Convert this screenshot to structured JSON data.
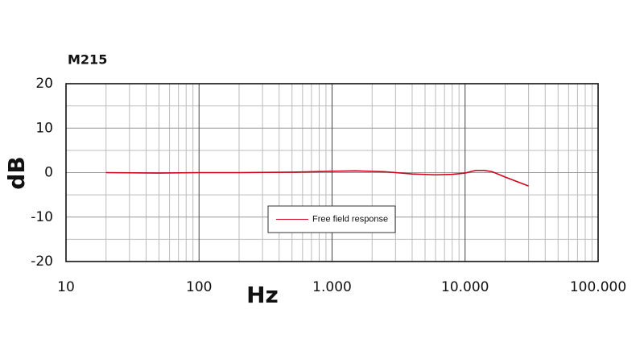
{
  "chart_data": {
    "type": "line",
    "title": "M215",
    "x_label": "Hz",
    "y_label": "dB",
    "x": [
      20,
      50,
      100,
      200,
      500,
      1000,
      1500,
      2500,
      4000,
      6000,
      8000,
      10000,
      12000,
      14000,
      16000,
      20000,
      30000
    ],
    "series": [
      {
        "name": "Free field response",
        "color": "#d0021b",
        "values": [
          0,
          -0.1,
          0,
          0,
          0.1,
          0.3,
          0.4,
          0.2,
          -0.3,
          -0.5,
          -0.4,
          -0.1,
          0.5,
          0.5,
          0.2,
          -1.0,
          -3.0
        ]
      }
    ],
    "xlim": [
      10,
      100000
    ],
    "xlog": true,
    "xticks": [
      10,
      100,
      {
        "value": 1000,
        "label": "1.000"
      },
      {
        "value": 10000,
        "label": "10.000"
      },
      {
        "value": 100000,
        "label": "100.000"
      }
    ],
    "ylim": [
      -20,
      20
    ],
    "yticks": [
      20,
      10,
      0,
      -10,
      -20
    ],
    "grid": true,
    "legend": "center"
  }
}
